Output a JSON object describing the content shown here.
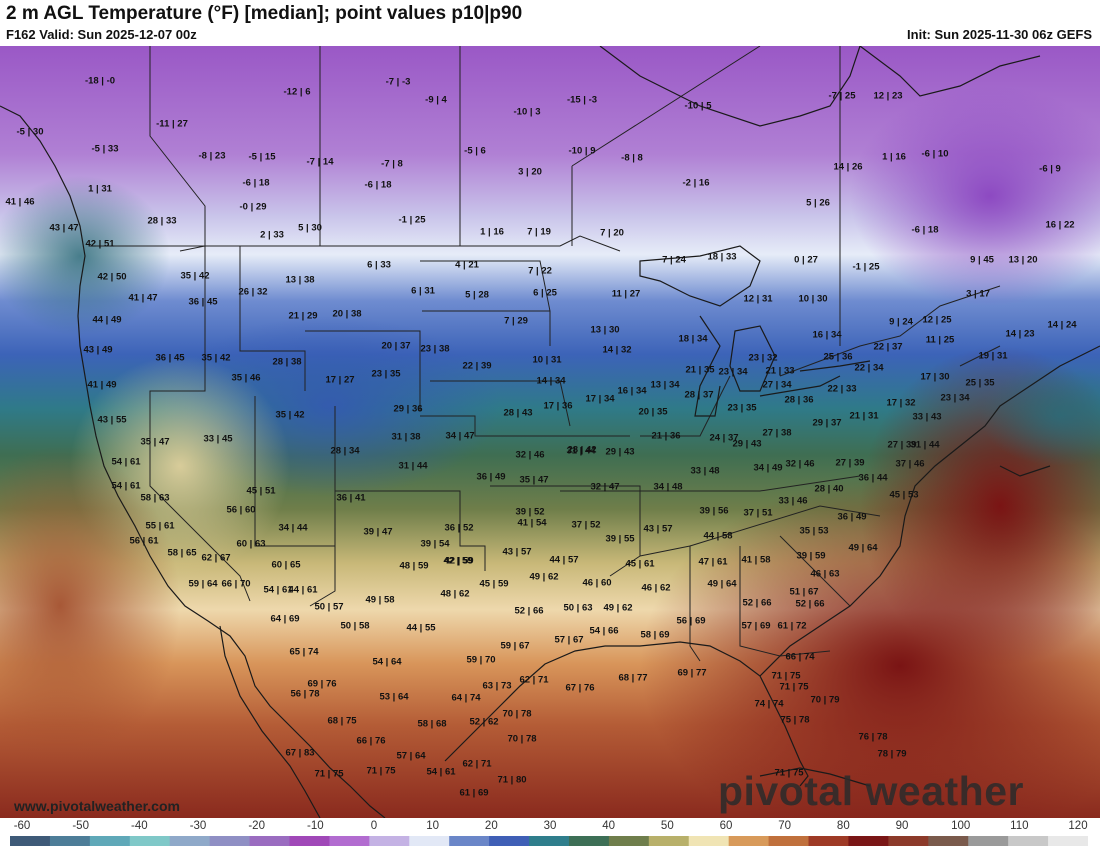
{
  "header": {
    "title": "2 m AGL Temperature (°F) [median]; point values p10|p90",
    "valid": "F162 Valid: Sun 2025-12-07 00z",
    "init": "Init: Sun 2025-11-30 06z GEFS"
  },
  "footer": {
    "website": "www.pivotalweather.com",
    "brand": "pivotal weather"
  },
  "colorbar": {
    "ticks": [
      "-60",
      "-50",
      "-40",
      "-30",
      "-20",
      "-10",
      "0",
      "10",
      "20",
      "30",
      "40",
      "50",
      "60",
      "70",
      "80",
      "90",
      "100",
      "110",
      "120"
    ],
    "colors": [
      "#3e5a78",
      "#4d7d98",
      "#5fa8b8",
      "#7fc8c8",
      "#8fa9c9",
      "#8f8fc4",
      "#9a6cc0",
      "#a048b8",
      "#b26cd0",
      "#c4b2e4",
      "#e2e8f6",
      "#6a86c8",
      "#3f5fb6",
      "#2f7e8c",
      "#3d6f56",
      "#6f7e4c",
      "#b8b06a",
      "#f0e4b4",
      "#d89a5a",
      "#c0703c",
      "#9e3a26",
      "#7a1616",
      "#8c3a2a",
      "#7a5a4c",
      "#9a9a9a",
      "#c8c8c8",
      "#e8e8e8"
    ]
  },
  "point_values": [
    {
      "t": "-18 | -0"
    },
    {
      "t": "-12 | 6"
    },
    {
      "t": "-7 | -3"
    },
    {
      "t": "-9 | 4"
    },
    {
      "t": "-15 | -3"
    },
    {
      "t": "-10 | 3"
    },
    {
      "t": "-10 | 5"
    },
    {
      "t": "-7 | 25"
    },
    {
      "t": "12 | 23"
    },
    {
      "t": "-5 | 30"
    },
    {
      "t": "-11 | 27"
    },
    {
      "t": "-5 | 33"
    },
    {
      "t": "-8 | 23"
    },
    {
      "t": "-5 | 15"
    },
    {
      "t": "-7 | 14"
    },
    {
      "t": "-7 | 8"
    },
    {
      "t": "-5 | 6"
    },
    {
      "t": "-10 | 9"
    },
    {
      "t": "-8 | 8"
    },
    {
      "t": "14 | 26"
    },
    {
      "t": "1 | 16"
    },
    {
      "t": "-6 | 10"
    },
    {
      "t": "-6 | 9"
    },
    {
      "t": "1 | 31"
    },
    {
      "t": "-6 | 18"
    },
    {
      "t": "-6 | 18"
    },
    {
      "t": "3 | 20"
    },
    {
      "t": "-2 | 16"
    },
    {
      "t": "5 | 26"
    },
    {
      "t": "41 | 46"
    },
    {
      "t": "-0 | 29"
    },
    {
      "t": "28 | 33"
    },
    {
      "t": "-1 | 25"
    },
    {
      "t": "16 | 22"
    },
    {
      "t": "43 | 47"
    },
    {
      "t": "5 | 30"
    },
    {
      "t": "1 | 16"
    },
    {
      "t": "7 | 19"
    },
    {
      "t": "7 | 20"
    },
    {
      "t": "-6 | 18"
    },
    {
      "t": "2 | 33"
    },
    {
      "t": "42 | 51"
    },
    {
      "t": "18 | 33"
    },
    {
      "t": "0 | 27"
    },
    {
      "t": "-1 | 25"
    },
    {
      "t": "9 | 45"
    },
    {
      "t": "13 | 20"
    },
    {
      "t": "6 | 33"
    },
    {
      "t": "4 | 21"
    },
    {
      "t": "7 | 22"
    },
    {
      "t": "7 | 24"
    },
    {
      "t": "42 | 50"
    },
    {
      "t": "35 | 42"
    },
    {
      "t": "13 | 38"
    },
    {
      "t": "26 | 32"
    },
    {
      "t": "6 | 31"
    },
    {
      "t": "5 | 28"
    },
    {
      "t": "6 | 25"
    },
    {
      "t": "11 | 27"
    },
    {
      "t": "3 | 17"
    },
    {
      "t": "41 | 47"
    },
    {
      "t": "36 | 45"
    },
    {
      "t": "12 | 31"
    },
    {
      "t": "10 | 30"
    },
    {
      "t": "44 | 49"
    },
    {
      "t": "21 | 29"
    },
    {
      "t": "20 | 38"
    },
    {
      "t": "7 | 29"
    },
    {
      "t": "9 | 24"
    },
    {
      "t": "12 | 25"
    },
    {
      "t": "14 | 24"
    },
    {
      "t": "13 | 30"
    },
    {
      "t": "16 | 34"
    },
    {
      "t": "14 | 23"
    },
    {
      "t": "20 | 37"
    },
    {
      "t": "23 | 38"
    },
    {
      "t": "14 | 32"
    },
    {
      "t": "18 | 34"
    },
    {
      "t": "22 | 37"
    },
    {
      "t": "11 | 25"
    },
    {
      "t": "43 | 49"
    },
    {
      "t": "36 | 45"
    },
    {
      "t": "35 | 42"
    },
    {
      "t": "28 | 38"
    },
    {
      "t": "10 | 31"
    },
    {
      "t": "23 | 32"
    },
    {
      "t": "25 | 36"
    },
    {
      "t": "19 | 31"
    },
    {
      "t": "22 | 39"
    },
    {
      "t": "22 | 34"
    },
    {
      "t": "21 | 35"
    },
    {
      "t": "23 | 34"
    },
    {
      "t": "21 | 33"
    },
    {
      "t": "17 | 30"
    },
    {
      "t": "35 | 46"
    },
    {
      "t": "17 | 27"
    },
    {
      "t": "23 | 35"
    },
    {
      "t": "14 | 34"
    },
    {
      "t": "25 | 35"
    },
    {
      "t": "41 | 49"
    },
    {
      "t": "16 | 34"
    },
    {
      "t": "13 | 34"
    },
    {
      "t": "27 | 34"
    },
    {
      "t": "22 | 33"
    },
    {
      "t": "17 | 34"
    },
    {
      "t": "28 | 37"
    },
    {
      "t": "23 | 34"
    },
    {
      "t": "29 | 36"
    },
    {
      "t": "28 | 36"
    },
    {
      "t": "17 | 32"
    },
    {
      "t": "35 | 42"
    },
    {
      "t": "28 | 43"
    },
    {
      "t": "17 | 36"
    },
    {
      "t": "20 | 35"
    },
    {
      "t": "23 | 35"
    },
    {
      "t": "21 | 31"
    },
    {
      "t": "33 | 43"
    },
    {
      "t": "43 | 55"
    },
    {
      "t": "29 | 37"
    },
    {
      "t": "27 | 38"
    },
    {
      "t": "21 | 36"
    },
    {
      "t": "24 | 37"
    },
    {
      "t": "35 | 47"
    },
    {
      "t": "33 | 45"
    },
    {
      "t": "31 | 38"
    },
    {
      "t": "34 | 47"
    },
    {
      "t": "28 | 34"
    },
    {
      "t": "27 | 39"
    },
    {
      "t": "31 | 44"
    },
    {
      "t": "31 | 44"
    },
    {
      "t": "28 | 42"
    },
    {
      "t": "29 | 43"
    },
    {
      "t": "32 | 46"
    },
    {
      "t": "54 | 61"
    },
    {
      "t": "31 | 44"
    },
    {
      "t": "29 | 43"
    },
    {
      "t": "32 | 46"
    },
    {
      "t": "27 | 39"
    },
    {
      "t": "34 | 49"
    },
    {
      "t": "33 | 48"
    },
    {
      "t": "37 | 46"
    },
    {
      "t": "36 | 49"
    },
    {
      "t": "35 | 47"
    },
    {
      "t": "54 | 61"
    },
    {
      "t": "36 | 44"
    },
    {
      "t": "32 | 47"
    },
    {
      "t": "34 | 48"
    },
    {
      "t": "28 | 40"
    },
    {
      "t": "45 | 51"
    },
    {
      "t": "58 | 63"
    },
    {
      "t": "36 | 41"
    },
    {
      "t": "45 | 53"
    },
    {
      "t": "33 | 46"
    },
    {
      "t": "56 | 60"
    },
    {
      "t": "39 | 52"
    },
    {
      "t": "39 | 56"
    },
    {
      "t": "37 | 51"
    },
    {
      "t": "41 | 54"
    },
    {
      "t": "37 | 52"
    },
    {
      "t": "55 | 61"
    },
    {
      "t": "34 | 44"
    },
    {
      "t": "39 | 47"
    },
    {
      "t": "36 | 52"
    },
    {
      "t": "43 | 57"
    },
    {
      "t": "35 | 53"
    },
    {
      "t": "36 | 49"
    },
    {
      "t": "39 | 55"
    },
    {
      "t": "56 | 61"
    },
    {
      "t": "60 | 63"
    },
    {
      "t": "39 | 54"
    },
    {
      "t": "44 | 58"
    },
    {
      "t": "42 | 59"
    },
    {
      "t": "49 | 64"
    },
    {
      "t": "58 | 65"
    },
    {
      "t": "62 | 67"
    },
    {
      "t": "43 | 57"
    },
    {
      "t": "39 | 59"
    },
    {
      "t": "44 | 57"
    },
    {
      "t": "60 | 65"
    },
    {
      "t": "48 | 59"
    },
    {
      "t": "42 | 59"
    },
    {
      "t": "47 | 61"
    },
    {
      "t": "41 | 58"
    },
    {
      "t": "45 | 61"
    },
    {
      "t": "46 | 63"
    },
    {
      "t": "59 | 64"
    },
    {
      "t": "66 | 70"
    },
    {
      "t": "49 | 62"
    },
    {
      "t": "44 | 61"
    },
    {
      "t": "46 | 60"
    },
    {
      "t": "45 | 59"
    },
    {
      "t": "54 | 61"
    },
    {
      "t": "48 | 62"
    },
    {
      "t": "46 | 62"
    },
    {
      "t": "49 | 64"
    },
    {
      "t": "51 | 67"
    },
    {
      "t": "49 | 58"
    },
    {
      "t": "52 | 66"
    },
    {
      "t": "50 | 57"
    },
    {
      "t": "50 | 63"
    },
    {
      "t": "49 | 62"
    },
    {
      "t": "52 | 66"
    },
    {
      "t": "52 | 66"
    },
    {
      "t": "64 | 69"
    },
    {
      "t": "50 | 58"
    },
    {
      "t": "44 | 55"
    },
    {
      "t": "54 | 66"
    },
    {
      "t": "56 | 69"
    },
    {
      "t": "57 | 69"
    },
    {
      "t": "61 | 72"
    },
    {
      "t": "57 | 67"
    },
    {
      "t": "58 | 69"
    },
    {
      "t": "59 | 67"
    },
    {
      "t": "65 | 74"
    },
    {
      "t": "66 | 74"
    },
    {
      "t": "54 | 64"
    },
    {
      "t": "59 | 70"
    },
    {
      "t": "69 | 77"
    },
    {
      "t": "68 | 77"
    },
    {
      "t": "67 | 76"
    },
    {
      "t": "62 | 71"
    },
    {
      "t": "71 | 75"
    },
    {
      "t": "69 | 76"
    },
    {
      "t": "63 | 73"
    },
    {
      "t": "53 | 64"
    },
    {
      "t": "64 | 74"
    },
    {
      "t": "71 | 75"
    },
    {
      "t": "74 | 74"
    },
    {
      "t": "70 | 78"
    },
    {
      "t": "56 | 78"
    },
    {
      "t": "68 | 75"
    },
    {
      "t": "58 | 68"
    },
    {
      "t": "52 | 62"
    },
    {
      "t": "75 | 78"
    },
    {
      "t": "70 | 79"
    },
    {
      "t": "66 | 76"
    },
    {
      "t": "70 | 78"
    },
    {
      "t": "76 | 78"
    },
    {
      "t": "67 | 83"
    },
    {
      "t": "57 | 64"
    },
    {
      "t": "62 | 71"
    },
    {
      "t": "78 | 79"
    },
    {
      "t": "71 | 75"
    },
    {
      "t": "71 | 75"
    },
    {
      "t": "54 | 61"
    },
    {
      "t": "71 | 80"
    },
    {
      "t": "71 | 75"
    },
    {
      "t": "61 | 69"
    }
  ]
}
